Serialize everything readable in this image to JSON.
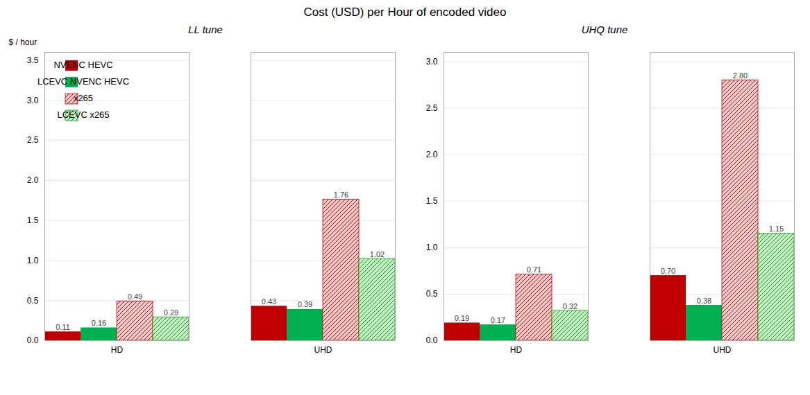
{
  "title": "Cost (USD) per Hour of encoded video",
  "chart_data": [
    {
      "type": "bar",
      "title": "LL tune",
      "ylabel": "$ / hour",
      "categories": [
        "HD",
        "UHD"
      ],
      "series": [
        {
          "name": "NVENC HEVC",
          "color": "#c00000",
          "values": [
            0.11,
            0.43
          ],
          "value_labels": [
            "0.11",
            "0.43"
          ]
        },
        {
          "name": "LCEVC NVENC HEVC",
          "color": "#00b050",
          "values": [
            0.16,
            0.39
          ],
          "value_labels": [
            "0.16",
            "0.39"
          ]
        },
        {
          "name": "x265",
          "color": "#cc0000",
          "values": [
            0.49,
            1.76
          ],
          "value_labels": [
            "0.49",
            "1.76"
          ]
        },
        {
          "name": "LCEVC x265",
          "color": "#00aa00",
          "values": [
            0.29,
            1.02
          ],
          "value_labels": [
            "0.29",
            "1.02"
          ]
        }
      ],
      "ylim": [
        0,
        3.6
      ],
      "yticks": [
        {
          "value": 0,
          "label": "0.0"
        },
        0.5,
        {
          "value": 1,
          "label": "1.0"
        },
        1.5,
        {
          "value": 2,
          "label": "2.0"
        },
        2.5,
        {
          "value": 3,
          "label": "3.0"
        },
        3.5
      ],
      "grid": true,
      "legend": "upper left",
      "data_labels": true
    },
    {
      "type": "bar",
      "title": "UHQ tune",
      "categories": [
        "HD",
        "UHD"
      ],
      "series": [
        {
          "name": "NVENC HEVC",
          "color": "#c00000",
          "values": [
            0.19,
            0.7
          ],
          "value_labels": [
            "0.19",
            "0.70"
          ]
        },
        {
          "name": "LCEVC NVENC HEVC",
          "color": "#00b050",
          "values": [
            0.17,
            0.38
          ],
          "value_labels": [
            "0.17",
            "0.38"
          ]
        },
        {
          "name": "x265",
          "color": "#cc0000",
          "values": [
            0.71,
            2.8
          ],
          "value_labels": [
            "0.71",
            "2.80"
          ]
        },
        {
          "name": "LCEVC x265",
          "color": "#00aa00",
          "values": [
            0.32,
            1.15
          ],
          "value_labels": [
            "0.32",
            "1.15"
          ]
        }
      ],
      "ylim": [
        0,
        3.1
      ],
      "yticks": [
        {
          "value": 0,
          "label": "0.0"
        },
        0.5,
        {
          "value": 1,
          "label": "1.0"
        },
        1.5,
        {
          "value": 2,
          "label": "2.0"
        },
        2.5,
        {
          "value": 3,
          "label": "3.0"
        }
      ],
      "grid": true,
      "data_labels": true
    }
  ]
}
